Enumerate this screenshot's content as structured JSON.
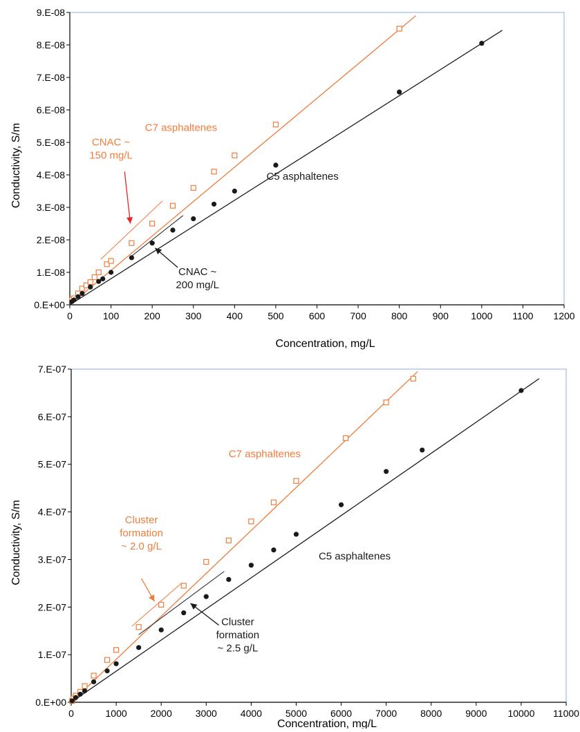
{
  "chart_data": [
    {
      "type": "scatter",
      "xlabel": "Concentration, mg/L",
      "ylabel": "Conductivity, S/m",
      "xlim": [
        0,
        1200
      ],
      "ylim": [
        0,
        9e-08
      ],
      "x_ticks": [
        "0",
        "100",
        "200",
        "300",
        "400",
        "500",
        "600",
        "700",
        "800",
        "900",
        "1000",
        "1100",
        "1200"
      ],
      "y_ticks": [
        "0.E+00",
        "1.E-08",
        "2.E-08",
        "3.E-08",
        "4.E-08",
        "5.E-08",
        "6.E-08",
        "7.E-08",
        "8.E-08",
        "9.E-08"
      ],
      "grid": false,
      "series": [
        {
          "name": "C7 asphaltenes",
          "color": "#f07c3c",
          "marker": "open-square",
          "x": [
            5,
            10,
            20,
            30,
            40,
            50,
            60,
            70,
            90,
            100,
            150,
            200,
            250,
            300,
            350,
            400,
            500,
            800
          ],
          "y": [
            1.5e-09,
            2e-09,
            3.5e-09,
            5e-09,
            6e-09,
            7e-09,
            8.5e-09,
            1e-08,
            1.25e-08,
            1.35e-08,
            1.9e-08,
            2.5e-08,
            3.05e-08,
            3.6e-08,
            4.1e-08,
            4.6e-08,
            5.55e-08,
            8.5e-08
          ],
          "fit_line": [
            [
              0,
              0
            ],
            [
              840,
              8.9e-08
            ]
          ],
          "tangent_line": [
            [
              75,
              1.4e-08
            ],
            [
              225,
              3.2e-08
            ]
          ]
        },
        {
          "name": "C5 asphaltenes",
          "color": "#1a1a1a",
          "marker": "filled-circle",
          "x": [
            5,
            10,
            20,
            30,
            50,
            70,
            80,
            100,
            150,
            200,
            250,
            300,
            350,
            400,
            500,
            800,
            1000
          ],
          "y": [
            1e-09,
            1.5e-09,
            2.5e-09,
            3.5e-09,
            5.5e-09,
            7.2e-09,
            8e-09,
            1e-08,
            1.45e-08,
            1.9e-08,
            2.3e-08,
            2.65e-08,
            3.1e-08,
            3.5e-08,
            4.3e-08,
            6.55e-08,
            8.05e-08
          ],
          "fit_line": [
            [
              0,
              0
            ],
            [
              1050,
              8.45e-08
            ]
          ],
          "tangent_line": [
            [
              150,
              1.5e-08
            ],
            [
              275,
              2.75e-08
            ]
          ]
        }
      ],
      "annotations": [
        {
          "lines": [
            "C7 asphaltenes"
          ],
          "color": "#f07c3c",
          "x": 270,
          "y": 5.35e-08,
          "anchor": "middle"
        },
        {
          "lines": [
            "C5 asphaltenes"
          ],
          "color": "#1a1a1a",
          "x": 565,
          "y": 3.85e-08,
          "anchor": "middle"
        },
        {
          "lines": [
            "CNAC ~",
            "150 mg/L"
          ],
          "color": "#f07c3c",
          "x": 100,
          "y": 4.9e-08,
          "anchor": "middle",
          "arrow": {
            "color": "#ee2222",
            "from": [
              133,
              4.1e-08
            ],
            "to": [
              147,
              2.5e-08
            ]
          }
        },
        {
          "lines": [
            "CNAC ~",
            "200 mg/L"
          ],
          "color": "#1a1a1a",
          "x": 310,
          "y": 9.2e-09,
          "anchor": "middle",
          "arrow": {
            "color": "#1a1a1a",
            "from": [
              262,
              1.15e-08
            ],
            "to": [
              207,
              1.75e-08
            ]
          }
        }
      ]
    },
    {
      "type": "scatter",
      "xlabel": "Concentration, mg/L",
      "ylabel": "Conductivity, S/m",
      "xlim": [
        0,
        11000
      ],
      "ylim": [
        0,
        7e-07
      ],
      "x_ticks": [
        "0",
        "1000",
        "2000",
        "3000",
        "4000",
        "5000",
        "6000",
        "7000",
        "8000",
        "9000",
        "10000",
        "11000"
      ],
      "y_ticks": [
        "0.E+00",
        "1.E-07",
        "2.E-07",
        "3.E-07",
        "4.E-07",
        "5.E-07",
        "6.E-07",
        "7.E-07"
      ],
      "grid": false,
      "series": [
        {
          "name": "C7 asphaltenes",
          "color": "#f07c3c",
          "marker": "open-square",
          "x": [
            20,
            50,
            100,
            200,
            300,
            500,
            800,
            1000,
            1500,
            2000,
            2500,
            3000,
            3500,
            4000,
            4500,
            5000,
            6100,
            7000,
            7600
          ],
          "y": [
            3e-09,
            8e-09,
            1.4e-08,
            2.2e-08,
            3.4e-08,
            5.6e-08,
            8.9e-08,
            1.1e-07,
            1.58e-07,
            2.05e-07,
            2.45e-07,
            2.95e-07,
            3.4e-07,
            3.8e-07,
            4.2e-07,
            4.65e-07,
            5.55e-07,
            6.3e-07,
            6.8e-07
          ],
          "fit_line": [
            [
              0,
              0
            ],
            [
              7700,
              6.95e-07
            ]
          ],
          "tangent_line": [
            [
              1350,
              1.6e-07
            ],
            [
              2450,
              2.5e-07
            ]
          ]
        },
        {
          "name": "C5 asphaltenes",
          "color": "#1a1a1a",
          "marker": "filled-circle",
          "x": [
            20,
            100,
            200,
            300,
            500,
            800,
            1000,
            1500,
            2000,
            2500,
            3000,
            3500,
            4000,
            4500,
            5000,
            6000,
            7000,
            7800,
            10000
          ],
          "y": [
            3e-09,
            1e-08,
            1.7e-08,
            2.4e-08,
            4.3e-08,
            6.6e-08,
            8.1e-08,
            1.15e-07,
            1.52e-07,
            1.88e-07,
            2.22e-07,
            2.58e-07,
            2.88e-07,
            3.2e-07,
            3.53e-07,
            4.15e-07,
            4.85e-07,
            5.3e-07,
            6.55e-07
          ],
          "fit_line": [
            [
              0,
              0
            ],
            [
              10400,
              6.8e-07
            ]
          ],
          "tangent_line": [
            [
              1500,
              1.42e-07
            ],
            [
              3400,
              2.75e-07
            ]
          ]
        }
      ],
      "annotations": [
        {
          "lines": [
            "C7 asphaltenes"
          ],
          "color": "#f07c3c",
          "x": 4300,
          "y": 5.15e-07,
          "anchor": "middle"
        },
        {
          "lines": [
            "C5 asphaltenes"
          ],
          "color": "#1a1a1a",
          "x": 6300,
          "y": 3e-07,
          "anchor": "middle"
        },
        {
          "lines": [
            "Cluster",
            "formation",
            "~ 2.0 g/L"
          ],
          "color": "#f07c3c",
          "x": 1560,
          "y": 3.76e-07,
          "anchor": "middle",
          "arrow": {
            "color": "#f07c3c",
            "from": [
              1560,
              2.6e-07
            ],
            "to": [
              1850,
              2.12e-07
            ]
          }
        },
        {
          "lines": [
            "Cluster",
            "formation",
            "~ 2.5 g/L"
          ],
          "color": "#1a1a1a",
          "x": 3700,
          "y": 1.62e-07,
          "anchor": "middle",
          "arrow": {
            "color": "#1a1a1a",
            "from": [
              3280,
              1.62e-07
            ],
            "to": [
              2650,
              2.08e-07
            ]
          }
        }
      ]
    }
  ]
}
